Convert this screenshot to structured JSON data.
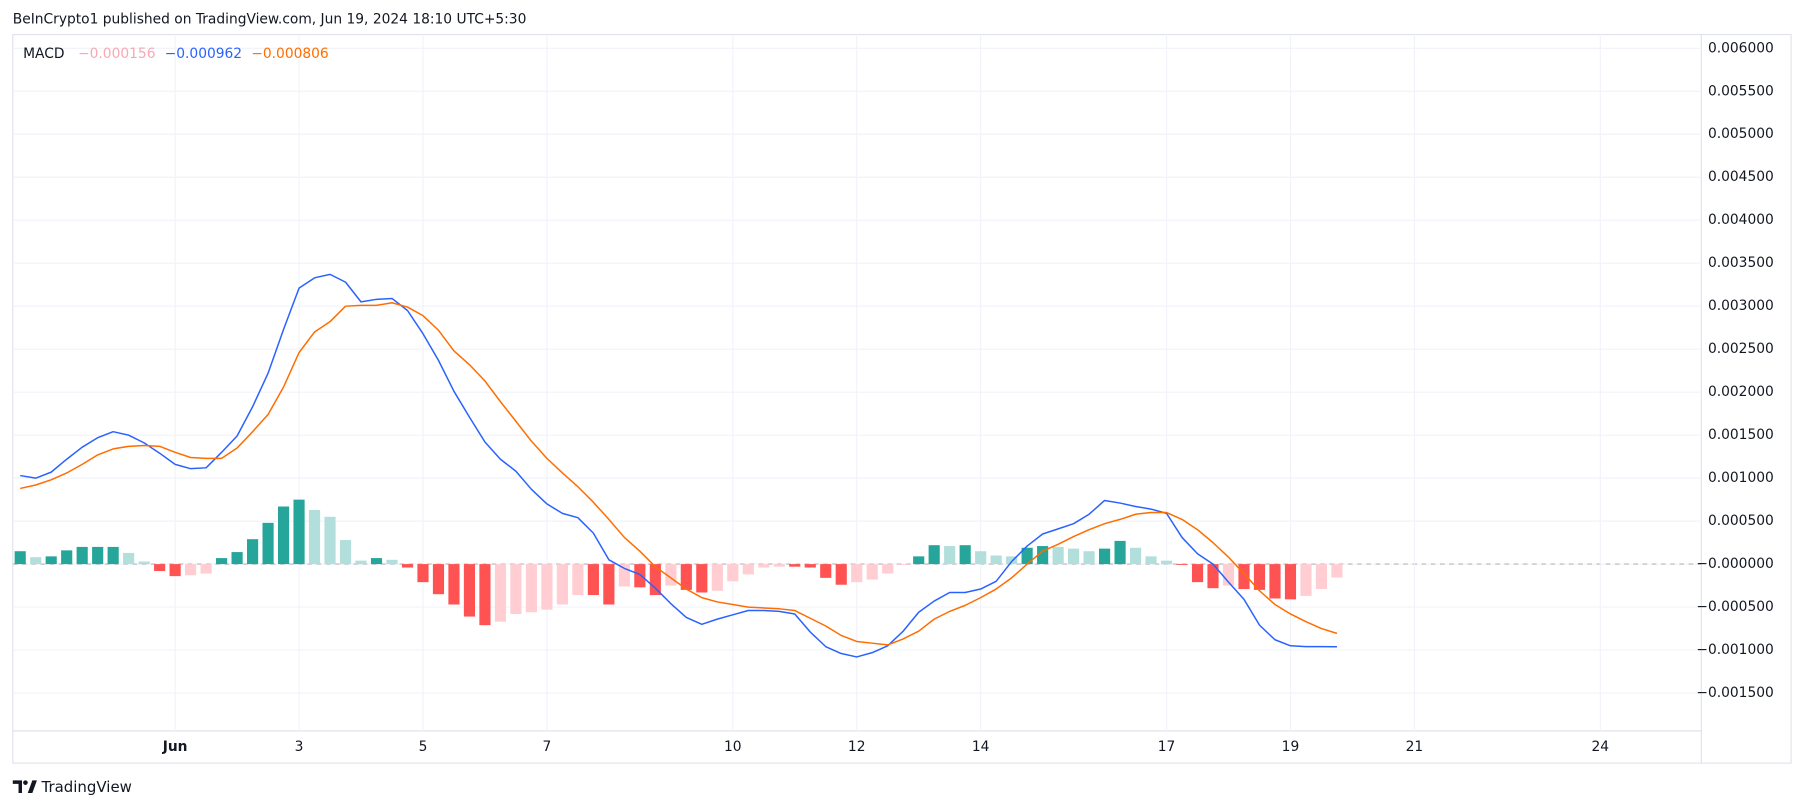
{
  "header": "BeInCrypto1 published on TradingView.com, Jun 19, 2024 18:10 UTC+5:30",
  "footer": "TradingView",
  "chart_data": {
    "type": "line",
    "title": "MACD",
    "x": [
      -1.5,
      -1.25,
      -1,
      -0.75,
      -0.5,
      -0.25,
      0,
      0.25,
      0.5,
      0.75,
      1,
      1.25,
      1.5,
      1.75,
      2,
      2.25,
      2.5,
      2.75,
      3,
      3.25,
      3.5,
      3.75,
      4,
      4.25,
      4.5,
      4.75,
      5,
      5.25,
      5.5,
      5.75,
      6,
      6.25,
      6.5,
      6.75,
      7,
      7.25,
      7.5,
      7.75,
      8,
      8.25,
      8.5,
      8.75,
      9,
      9.25,
      9.5,
      9.75,
      10,
      10.25,
      10.5,
      10.75,
      11,
      11.25,
      11.5,
      11.75,
      12,
      12.25,
      12.5,
      12.75,
      13,
      13.25,
      13.5,
      13.75,
      14,
      14.25,
      14.5,
      14.75,
      15,
      15.25,
      15.5,
      15.75,
      16,
      16.25,
      16.5,
      16.75,
      17,
      17.25,
      17.5,
      17.75,
      18,
      18.25,
      18.5,
      18.75,
      19,
      19.25,
      19.5,
      19.75
    ],
    "xlim": [
      -1.62,
      25.63
    ],
    "xticks": [
      {
        "value": 1,
        "label": "Jun"
      },
      3,
      5,
      7,
      10,
      12,
      14,
      17,
      19,
      21,
      24
    ],
    "ylim": [
      -0.00194,
      0.00616
    ],
    "yticks": [
      {
        "value": 0.006,
        "label": "0.006000"
      },
      {
        "value": 0.0055,
        "label": "0.005500"
      },
      {
        "value": 0.005,
        "label": "0.005000"
      },
      {
        "value": 0.0045,
        "label": "0.004500"
      },
      {
        "value": 0.004,
        "label": "0.004000"
      },
      {
        "value": 0.0035,
        "label": "0.003500"
      },
      {
        "value": 0.003,
        "label": "0.003000"
      },
      {
        "value": 0.0025,
        "label": "0.002500"
      },
      {
        "value": 0.002,
        "label": "0.002000"
      },
      {
        "value": 0.0015,
        "label": "0.001500"
      },
      {
        "value": 0.001,
        "label": "0.001000"
      },
      {
        "value": 0.0005,
        "label": "0.000500"
      },
      {
        "value": 0,
        "label": "−0.000000"
      },
      {
        "value": -0.0005,
        "label": "−0.000500"
      },
      {
        "value": -0.001,
        "label": "−0.001000"
      },
      {
        "value": -0.0015,
        "label": "−0.001500"
      }
    ],
    "grid": true,
    "series": [
      {
        "type": "bar",
        "color": "#f7a8b4",
        "label": "−0.000156",
        "colors": {
          "rising_above": "#26a69a",
          "falling_above": "#b2dfdb",
          "falling_below": "#ff5252",
          "rising_below": "#ffcdd2"
        },
        "values": [
          0.00015,
          8e-05,
          9e-05,
          0.00016,
          0.0002,
          0.0002,
          0.0002,
          0.00013,
          3e-05,
          -8e-05,
          -0.00014,
          -0.00013,
          -0.00011,
          7e-05,
          0.00014,
          0.00029,
          0.00048,
          0.00067,
          0.00075,
          0.00063,
          0.00055,
          0.00028,
          4e-05,
          7e-05,
          5e-05,
          -4e-05,
          -0.00021,
          -0.00035,
          -0.00047,
          -0.00061,
          -0.00071,
          -0.00067,
          -0.00058,
          -0.00056,
          -0.00053,
          -0.00047,
          -0.00036,
          -0.00036,
          -0.00047,
          -0.00026,
          -0.00027,
          -0.00036,
          -0.00025,
          -0.0003,
          -0.00033,
          -0.00031,
          -0.0002,
          -0.00012,
          -4e-05,
          -3e-05,
          -3e-05,
          -4e-05,
          -0.00016,
          -0.00024,
          -0.00021,
          -0.00018,
          -0.00011,
          -1e-05,
          9e-05,
          0.00022,
          0.00021,
          0.00022,
          0.00015,
          0.0001,
          9e-05,
          0.00019,
          0.00021,
          0.0002,
          0.00018,
          0.00015,
          0.00018,
          0.00027,
          0.00019,
          9e-05,
          4e-05,
          -1e-05,
          -0.00021,
          -0.00028,
          -0.00025,
          -0.00029,
          -0.0003,
          -0.0004,
          -0.00041,
          -0.00037,
          -0.00029,
          -0.000156
        ]
      },
      {
        "type": "line",
        "color": "#2962ff",
        "label": "−0.000962",
        "values": [
          0.00103,
          0.001,
          0.00107,
          0.00122,
          0.00136,
          0.00147,
          0.00154,
          0.0015,
          0.00141,
          0.00129,
          0.00116,
          0.00111,
          0.00112,
          0.0013,
          0.00149,
          0.00183,
          0.00222,
          0.00273,
          0.00321,
          0.00333,
          0.00337,
          0.00328,
          0.00305,
          0.00308,
          0.00309,
          0.00295,
          0.00268,
          0.00237,
          0.00201,
          0.00171,
          0.00142,
          0.00122,
          0.00108,
          0.00087,
          0.0007,
          0.00059,
          0.00054,
          0.00036,
          5e-05,
          -5e-05,
          -0.00012,
          -0.00028,
          -0.00046,
          -0.00062,
          -0.0007,
          -0.00064,
          -0.00059,
          -0.00054,
          -0.00054,
          -0.00055,
          -0.00058,
          -0.00079,
          -0.00096,
          -0.00104,
          -0.00108,
          -0.00103,
          -0.00095,
          -0.00078,
          -0.00056,
          -0.00043,
          -0.00033,
          -0.00033,
          -0.00029,
          -0.0002,
          3e-05,
          0.00021,
          0.00035,
          0.00041,
          0.00047,
          0.00058,
          0.00074,
          0.00071,
          0.00067,
          0.00064,
          0.00059,
          0.00031,
          0.00012,
          0,
          -0.00021,
          -0.00041,
          -0.00071,
          -0.00088,
          -0.00095,
          -0.00096,
          -0.00096,
          -0.000962
        ]
      },
      {
        "type": "line",
        "color": "#ff6d00",
        "label": "−0.000806",
        "values": [
          0.00088,
          0.00092,
          0.00098,
          0.00106,
          0.00116,
          0.00127,
          0.00134,
          0.00137,
          0.00138,
          0.00137,
          0.0013,
          0.00124,
          0.00123,
          0.00123,
          0.00135,
          0.00154,
          0.00174,
          0.00206,
          0.00246,
          0.0027,
          0.00282,
          0.003,
          0.00301,
          0.00301,
          0.00304,
          0.00299,
          0.00289,
          0.00272,
          0.00248,
          0.00232,
          0.00213,
          0.00189,
          0.00166,
          0.00143,
          0.00123,
          0.00106,
          0.0009,
          0.00072,
          0.00052,
          0.00031,
          0.00015,
          -3e-05,
          -0.00016,
          -0.00029,
          -0.00039,
          -0.00044,
          -0.00047,
          -0.0005,
          -0.00051,
          -0.00052,
          -0.00054,
          -0.00063,
          -0.00072,
          -0.00083,
          -0.0009,
          -0.00092,
          -0.00094,
          -0.00087,
          -0.00078,
          -0.00064,
          -0.00055,
          -0.00048,
          -0.00039,
          -0.00029,
          -0.00016,
          0,
          0.00015,
          0.00023,
          0.00032,
          0.0004,
          0.00047,
          0.00052,
          0.00058,
          0.0006,
          0.0006,
          0.00052,
          0.0004,
          0.00025,
          8e-05,
          -0.00011,
          -0.00031,
          -0.00047,
          -0.00058,
          -0.00067,
          -0.00075,
          -0.000806
        ]
      }
    ]
  }
}
